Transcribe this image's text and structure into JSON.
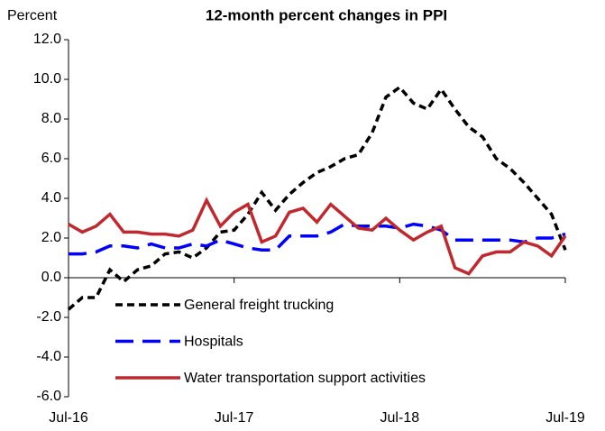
{
  "chart_data": {
    "type": "line",
    "title": "12-month percent changes in PPI",
    "y_axis_label": "Percent",
    "categories": [
      "Jul-16",
      null,
      null,
      null,
      null,
      null,
      null,
      null,
      null,
      null,
      null,
      null,
      "Jul-17",
      null,
      null,
      null,
      null,
      null,
      null,
      null,
      null,
      null,
      null,
      null,
      "Jul-18",
      null,
      null,
      null,
      null,
      null,
      null,
      null,
      null,
      null,
      null,
      null,
      "Jul-19"
    ],
    "series": [
      {
        "name": "General freight trucking",
        "color": "#000000",
        "line_style": "dashed",
        "values": [
          -1.6,
          -1.0,
          -1.0,
          0.4,
          -0.2,
          0.4,
          0.6,
          1.2,
          1.3,
          1.0,
          1.5,
          2.3,
          2.4,
          3.2,
          4.3,
          3.4,
          4.2,
          4.8,
          5.3,
          5.6,
          6.0,
          6.2,
          7.3,
          9.1,
          9.6,
          8.8,
          8.5,
          9.5,
          8.5,
          7.6,
          7.1,
          6.0,
          5.5,
          4.8,
          4.0,
          3.2,
          1.4
        ]
      },
      {
        "name": "Hospitals",
        "color": "#0000ff",
        "line_style": "long-dash",
        "values": [
          1.2,
          1.2,
          1.3,
          1.6,
          1.6,
          1.5,
          1.7,
          1.5,
          1.5,
          1.7,
          1.6,
          1.9,
          1.7,
          1.5,
          1.4,
          1.4,
          2.1,
          2.1,
          2.1,
          2.3,
          2.7,
          2.6,
          2.6,
          2.6,
          2.5,
          2.7,
          2.6,
          2.4,
          1.9,
          1.9,
          1.9,
          1.9,
          1.9,
          1.8,
          2.0,
          2.0,
          2.2
        ]
      },
      {
        "name": "Water transportation support activities",
        "color": "#c0282d",
        "line_style": "solid",
        "values": [
          2.7,
          2.3,
          2.6,
          3.2,
          2.3,
          2.3,
          2.2,
          2.2,
          2.1,
          2.4,
          3.9,
          2.6,
          3.3,
          3.7,
          1.8,
          2.1,
          3.3,
          3.5,
          2.8,
          3.7,
          3.1,
          2.5,
          2.4,
          3.0,
          2.4,
          1.9,
          2.3,
          2.6,
          0.5,
          0.2,
          1.1,
          1.3,
          1.3,
          1.8,
          1.6,
          1.1,
          2.1
        ]
      }
    ],
    "ylim": [
      -6,
      12
    ],
    "yticks": [
      {
        "value": -6,
        "label": "-6.0"
      },
      {
        "value": -4,
        "label": "-4.0"
      },
      {
        "value": -2,
        "label": "-2.0"
      },
      {
        "value": 0,
        "label": "0.0"
      },
      {
        "value": 2,
        "label": "2.0"
      },
      {
        "value": 4,
        "label": "4.0"
      },
      {
        "value": 6,
        "label": "6.0"
      },
      {
        "value": 8,
        "label": "8.0"
      },
      {
        "value": 10,
        "label": "10.0"
      },
      {
        "value": 12,
        "label": "12.0"
      }
    ],
    "grid": false,
    "legend": "lower left"
  }
}
